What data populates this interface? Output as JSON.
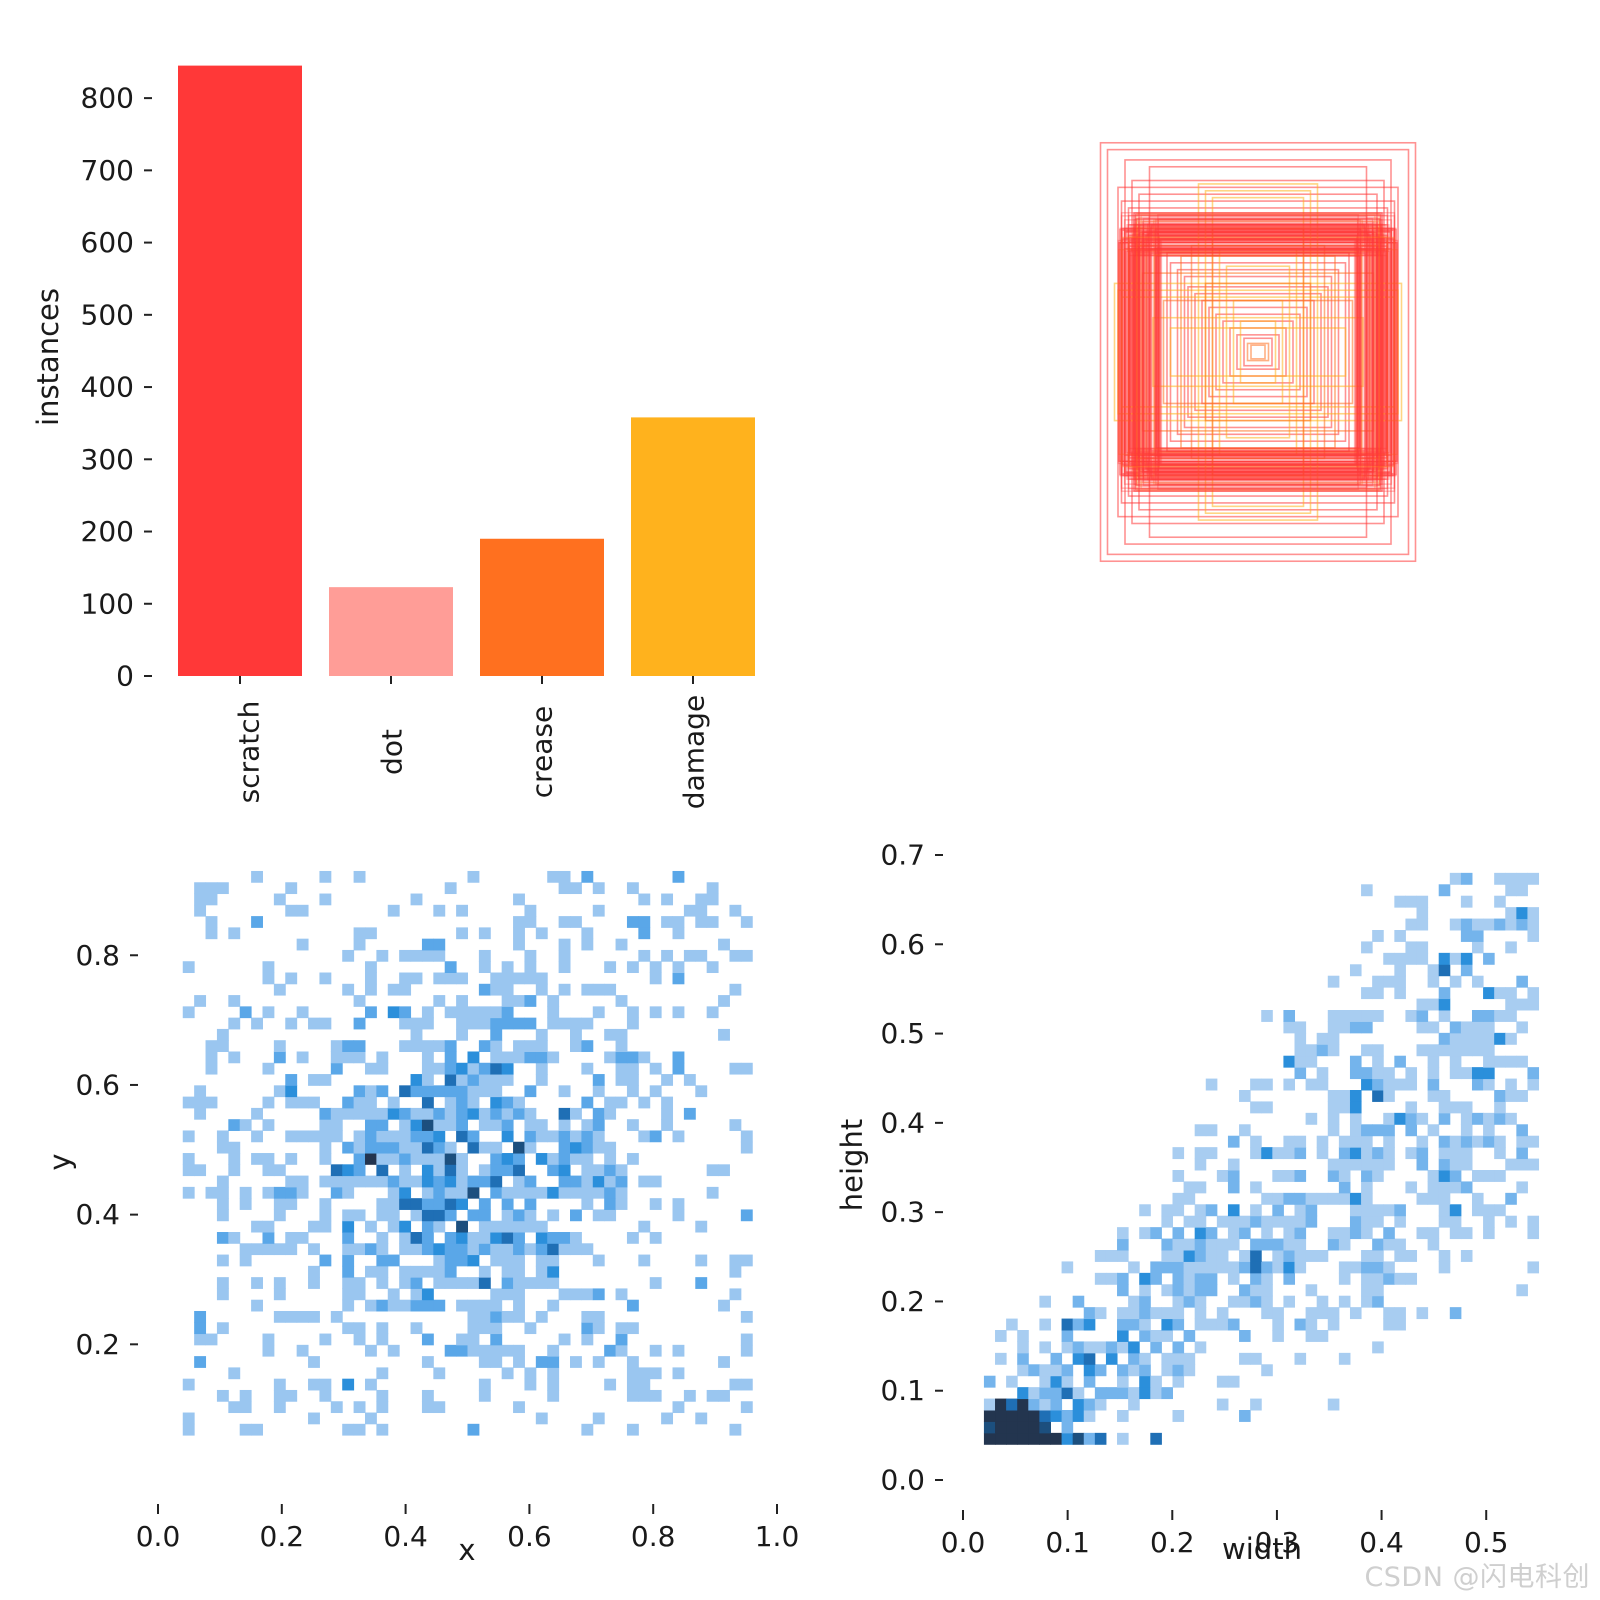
{
  "watermark": "CSDN @闪电科创",
  "chart_data": [
    {
      "type": "bar",
      "categories": [
        "scratch",
        "dot",
        "crease",
        "damage"
      ],
      "values": [
        845,
        123,
        190,
        358
      ],
      "colors": [
        "#ff3838",
        "#ff9d97",
        "#ff701f",
        "#ffb21d"
      ],
      "ylabel": "instances",
      "yticks": [
        0,
        100,
        200,
        300,
        400,
        500,
        600,
        700,
        800
      ],
      "ylim": [
        0,
        850
      ]
    },
    {
      "type": "boxes",
      "description_colors": [
        "#ff3838",
        "#ffb21d",
        "#ff701f"
      ],
      "boxes": [
        {
          "w": 0.9,
          "h": 1.22,
          "c": "#ff3838"
        },
        {
          "w": 0.86,
          "h": 1.18,
          "c": "#ff3838"
        },
        {
          "w": 0.62,
          "h": 1.08,
          "c": "#ff3838"
        },
        {
          "w": 0.76,
          "h": 1.12,
          "c": "#ff3838"
        },
        {
          "w": 0.72,
          "h": 1.0,
          "c": "#ff3838"
        },
        {
          "w": 0.8,
          "h": 0.96,
          "c": "#ff3838"
        },
        {
          "w": 0.68,
          "h": 0.92,
          "c": "#ff3838"
        },
        {
          "w": 0.78,
          "h": 0.88,
          "c": "#ff3838"
        },
        {
          "w": 0.74,
          "h": 0.84,
          "c": "#ff3838"
        },
        {
          "w": 0.7,
          "h": 0.8,
          "c": "#ff3838"
        },
        {
          "w": 0.78,
          "h": 0.72,
          "c": "#ff3838"
        },
        {
          "w": 0.76,
          "h": 0.7,
          "c": "#ff3838"
        },
        {
          "w": 0.74,
          "h": 0.68,
          "c": "#ff3838"
        },
        {
          "w": 0.72,
          "h": 0.66,
          "c": "#ff3838"
        },
        {
          "w": 0.7,
          "h": 0.64,
          "c": "#ff3838"
        },
        {
          "w": 0.68,
          "h": 0.62,
          "c": "#ff3838"
        },
        {
          "w": 0.66,
          "h": 0.7,
          "c": "#ff3838"
        },
        {
          "w": 0.64,
          "h": 0.68,
          "c": "#ff3838"
        },
        {
          "w": 0.62,
          "h": 0.6,
          "c": "#ff3838"
        },
        {
          "w": 0.58,
          "h": 0.56,
          "c": "#ff3838"
        },
        {
          "w": 0.56,
          "h": 0.66,
          "c": "#ff3838"
        },
        {
          "w": 0.52,
          "h": 0.58,
          "c": "#ff3838"
        },
        {
          "w": 0.5,
          "h": 0.52,
          "c": "#ff3838"
        },
        {
          "w": 0.46,
          "h": 0.48,
          "c": "#ff3838"
        },
        {
          "w": 0.42,
          "h": 0.44,
          "c": "#ff3838"
        },
        {
          "w": 0.4,
          "h": 0.38,
          "c": "#ff3838"
        },
        {
          "w": 0.36,
          "h": 0.34,
          "c": "#ff3838"
        },
        {
          "w": 0.32,
          "h": 0.3,
          "c": "#ff3838"
        },
        {
          "w": 0.28,
          "h": 0.26,
          "c": "#ff3838"
        },
        {
          "w": 0.24,
          "h": 0.22,
          "c": "#ff3838"
        },
        {
          "w": 0.2,
          "h": 0.18,
          "c": "#ff3838"
        },
        {
          "w": 0.16,
          "h": 0.14,
          "c": "#ff3838"
        },
        {
          "w": 0.12,
          "h": 0.1,
          "c": "#ff3838"
        },
        {
          "w": 0.08,
          "h": 0.08,
          "c": "#ff3838"
        },
        {
          "w": 0.82,
          "h": 0.4,
          "c": "#ffb21d"
        },
        {
          "w": 0.8,
          "h": 0.36,
          "c": "#ffb21d"
        },
        {
          "w": 0.78,
          "h": 0.32,
          "c": "#ffb21d"
        },
        {
          "w": 0.34,
          "h": 0.98,
          "c": "#ffb21d"
        },
        {
          "w": 0.3,
          "h": 0.94,
          "c": "#ffb21d"
        },
        {
          "w": 0.26,
          "h": 0.9,
          "c": "#ffb21d"
        },
        {
          "w": 0.22,
          "h": 0.6,
          "c": "#ffb21d"
        },
        {
          "w": 0.18,
          "h": 0.5,
          "c": "#ffb21d"
        },
        {
          "w": 0.14,
          "h": 0.3,
          "c": "#ffb21d"
        },
        {
          "w": 0.1,
          "h": 0.18,
          "c": "#ffb21d"
        },
        {
          "w": 0.6,
          "h": 0.2,
          "c": "#ffb21d"
        },
        {
          "w": 0.5,
          "h": 0.14,
          "c": "#ffb21d"
        },
        {
          "w": 0.44,
          "h": 0.56,
          "c": "#ff701f"
        },
        {
          "w": 0.38,
          "h": 0.62,
          "c": "#ff701f"
        },
        {
          "w": 0.3,
          "h": 0.4,
          "c": "#ff701f"
        },
        {
          "w": 0.54,
          "h": 0.3,
          "c": "#ff701f"
        },
        {
          "w": 0.26,
          "h": 0.72,
          "c": "#ff701f"
        },
        {
          "w": 0.66,
          "h": 0.46,
          "c": "#ff701f"
        },
        {
          "w": 0.06,
          "h": 0.05,
          "c": "#ff701f"
        },
        {
          "w": 0.04,
          "h": 0.04,
          "c": "#ff701f"
        }
      ]
    },
    {
      "type": "heatmap",
      "xlabel": "x",
      "ylabel": "y",
      "xlim": [
        0.0,
        1.0
      ],
      "ylim": [
        0.0,
        0.95
      ],
      "xticks": [
        0.0,
        0.2,
        0.4,
        0.6,
        0.8,
        1.0
      ],
      "yticks": [
        0.2,
        0.4,
        0.6,
        0.8
      ],
      "bins": 50,
      "extent": [
        0.04,
        0.96,
        0.06,
        0.93
      ],
      "center": [
        0.48,
        0.47
      ],
      "spread": [
        0.14,
        0.14
      ],
      "count": 1200,
      "colors": [
        "#9ac6f0",
        "#5aa7e8",
        "#2b8fdb",
        "#1f6fb5",
        "#1c4f7e",
        "#23354f"
      ]
    },
    {
      "type": "heatmap",
      "xlabel": "width",
      "ylabel": "height",
      "xlim": [
        0.0,
        0.56
      ],
      "ylim": [
        0.0,
        0.7
      ],
      "xticks": [
        0.0,
        0.1,
        0.2,
        0.3,
        0.4,
        0.5
      ],
      "yticks": [
        0.0,
        0.1,
        0.2,
        0.3,
        0.4,
        0.5,
        0.6,
        0.7
      ],
      "bins": 50,
      "extent": [
        0.02,
        0.55,
        0.04,
        0.68
      ],
      "count": 1200,
      "colors": [
        "#a8cdf1",
        "#74b4ec",
        "#2b8fdb",
        "#1f6fb5",
        "#1c4f7e",
        "#23354f"
      ]
    }
  ]
}
